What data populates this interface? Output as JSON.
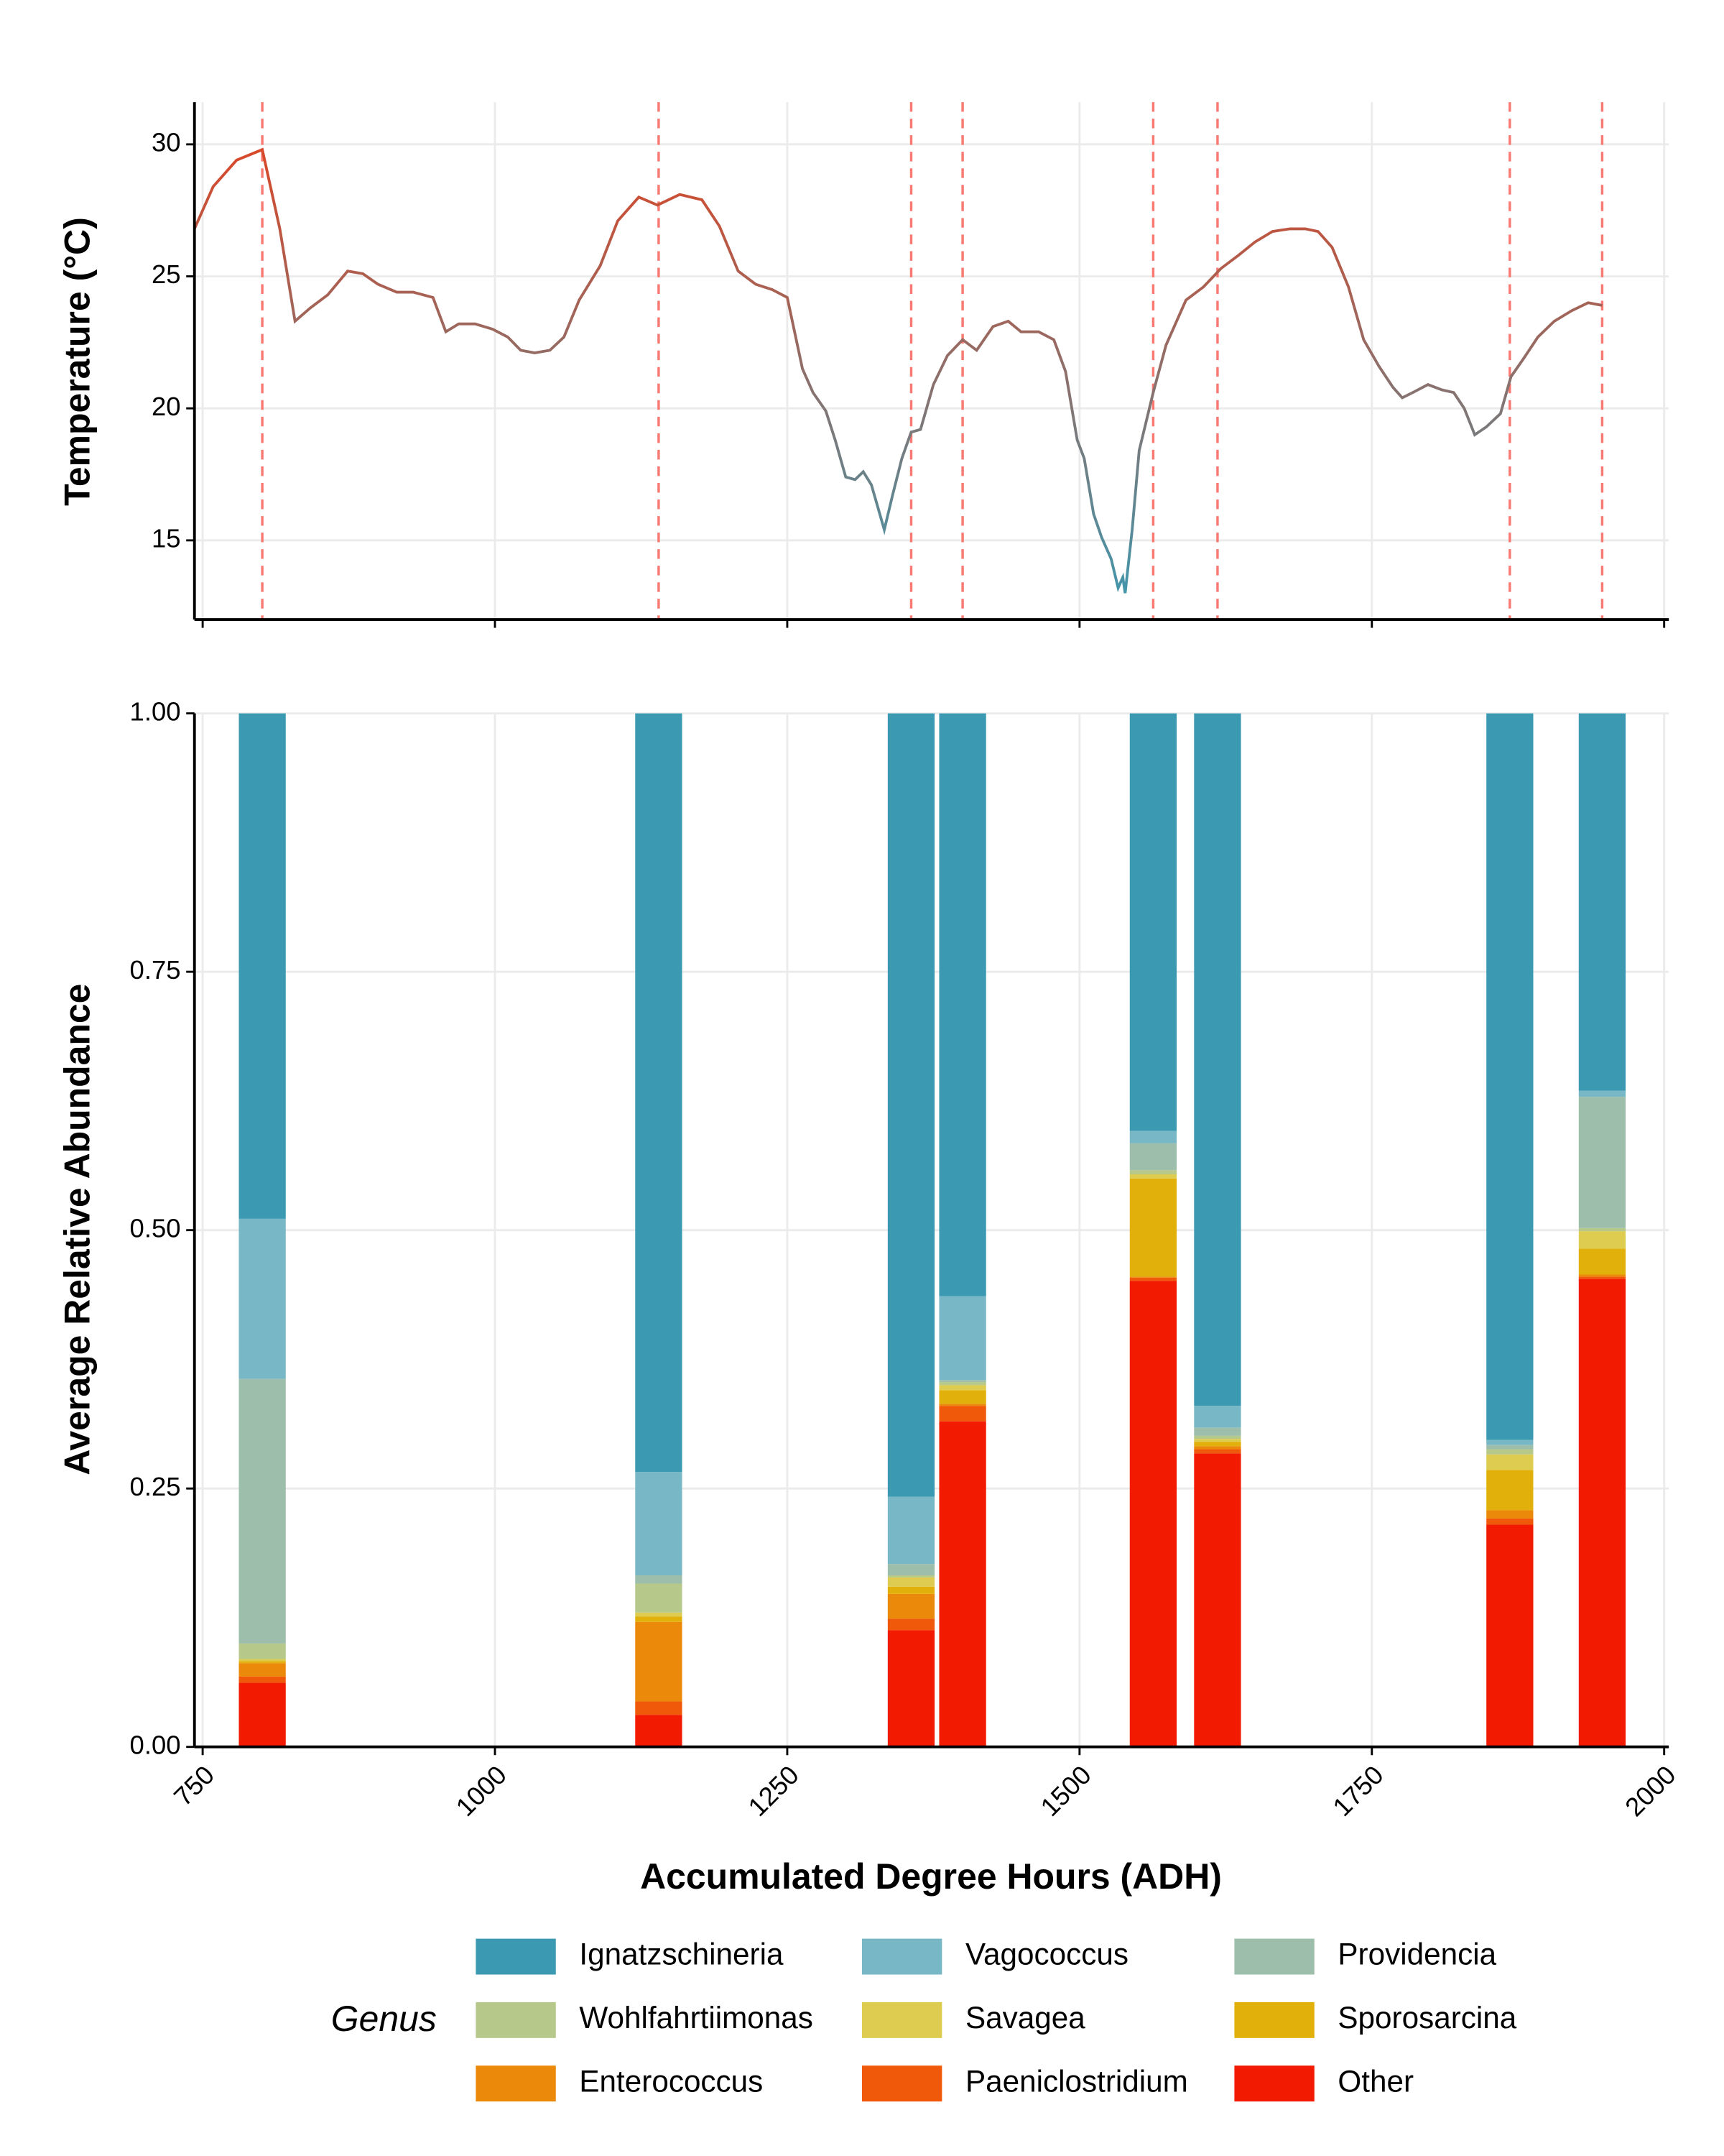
{
  "chart_data": [
    {
      "type": "line",
      "y_label": "Temperature (°C)",
      "x": [
        743,
        759,
        779,
        801,
        816,
        829,
        842,
        857,
        874,
        887,
        900,
        916,
        930,
        947,
        958,
        969,
        983,
        998,
        1011,
        1022,
        1034,
        1047,
        1059,
        1072,
        1090,
        1105,
        1123,
        1139,
        1158,
        1177,
        1192,
        1208,
        1223,
        1237,
        1250,
        1263,
        1272,
        1283,
        1291,
        1300,
        1308,
        1315,
        1322,
        1333,
        1340,
        1348,
        1356,
        1364,
        1375,
        1387,
        1400,
        1412,
        1426,
        1439,
        1450,
        1465,
        1478,
        1488,
        1498,
        1504,
        1512,
        1519,
        1527,
        1533,
        1537,
        1539,
        1545,
        1551,
        1563,
        1574,
        1591,
        1606,
        1621,
        1636,
        1650,
        1665,
        1680,
        1693,
        1704,
        1716,
        1730,
        1743,
        1756,
        1768,
        1776,
        1785,
        1798,
        1810,
        1820,
        1829,
        1838,
        1848,
        1860,
        1869,
        1880,
        1892,
        1906,
        1921,
        1935,
        1947
      ],
      "series": [
        {
          "values": [
            26.8,
            28.4,
            29.4,
            29.8,
            26.8,
            23.3,
            23.8,
            24.3,
            25.2,
            25.1,
            24.7,
            24.4,
            24.4,
            24.2,
            22.9,
            23.2,
            23.2,
            23.0,
            22.7,
            22.2,
            22.1,
            22.2,
            22.7,
            24.1,
            25.4,
            27.1,
            28.0,
            27.7,
            28.1,
            27.9,
            26.9,
            25.2,
            24.7,
            24.5,
            24.2,
            21.5,
            20.6,
            19.9,
            18.8,
            17.4,
            17.3,
            17.6,
            17.1,
            15.4,
            16.7,
            18.1,
            19.1,
            19.2,
            20.9,
            22.0,
            22.6,
            22.2,
            23.1,
            23.3,
            22.9,
            22.9,
            22.6,
            21.4,
            18.8,
            18.1,
            16.0,
            15.1,
            14.3,
            13.2,
            13.6,
            13.0,
            15.4,
            18.4,
            20.6,
            22.4,
            24.1,
            24.6,
            25.3,
            25.8,
            26.3,
            26.7,
            26.8,
            26.8,
            26.7,
            26.1,
            24.6,
            22.6,
            21.6,
            20.8,
            20.4,
            20.6,
            20.9,
            20.7,
            20.6,
            20.0,
            19.0,
            19.3,
            19.8,
            21.2,
            21.9,
            22.7,
            23.3,
            23.7,
            24.0,
            23.9
          ]
        }
      ],
      "line_color_low": "#3b9ab2",
      "line_color_high": "#e8401c",
      "vlines": [
        801,
        1140,
        1356,
        1400,
        1563,
        1618,
        1868,
        1947
      ],
      "vline_color": "#f87a72",
      "xlim": [
        743,
        2004
      ],
      "ylim": [
        12,
        31.6
      ],
      "xticks": [
        750,
        1000,
        1250,
        1500,
        1750,
        2000
      ],
      "x_tick_labels": false,
      "yticks": [
        15,
        20,
        25,
        30
      ],
      "grid": true
    },
    {
      "type": "stacked_bar",
      "x_label": "Accumulated Degree Hours (ADH)",
      "y_label": "Average Relative Abundance",
      "legend_title": "Genus",
      "x": [
        801,
        1140,
        1356,
        1400,
        1563,
        1618,
        1868,
        1947
      ],
      "series": [
        {
          "name": "Ignatzschineria",
          "color": "#3b9ab2",
          "values": [
            0.489,
            0.734,
            0.758,
            0.564,
            0.404,
            0.67,
            0.703,
            0.365
          ]
        },
        {
          "name": "Vagococcus",
          "color": "#78b7c5",
          "values": [
            0.155,
            0.1,
            0.065,
            0.081,
            0.012,
            0.021,
            0.005,
            0.006
          ]
        },
        {
          "name": "Providencia",
          "color": "#9cbeaa",
          "values": [
            0.256,
            0.008,
            0.011,
            0.002,
            0.026,
            0.008,
            0.004,
            0.127
          ]
        },
        {
          "name": "Wohlfahrtiimonas",
          "color": "#b6c98a",
          "values": [
            0.015,
            0.028,
            0.002,
            0.003,
            0.004,
            0.003,
            0.005,
            0.003
          ]
        },
        {
          "name": "Savagea",
          "color": "#ddcc50",
          "values": [
            0.002,
            0.004,
            0.009,
            0.005,
            0.004,
            0.003,
            0.015,
            0.017
          ]
        },
        {
          "name": "Sporosarcina",
          "color": "#e2b00a",
          "values": [
            0.002,
            0.005,
            0.007,
            0.013,
            0.095,
            0.004,
            0.039,
            0.025
          ]
        },
        {
          "name": "Enterococcus",
          "color": "#eb8a0a",
          "values": [
            0.013,
            0.077,
            0.024,
            0.002,
            0.001,
            0.003,
            0.008,
            0.002
          ]
        },
        {
          "name": "Paeniclostridium",
          "color": "#f0590a",
          "values": [
            0.006,
            0.013,
            0.011,
            0.015,
            0.003,
            0.004,
            0.006,
            0.002
          ]
        },
        {
          "name": "Other",
          "color": "#f21a00",
          "values": [
            0.062,
            0.031,
            0.113,
            0.315,
            0.451,
            0.284,
            0.215,
            0.453
          ]
        }
      ],
      "stack_from_bottom": [
        8,
        7,
        6,
        5,
        4,
        3,
        2,
        1,
        0
      ],
      "xlim": [
        743,
        2004
      ],
      "ylim": [
        0,
        1
      ],
      "xticks": [
        750,
        1000,
        1250,
        1500,
        1750,
        2000
      ],
      "yticks": [
        {
          "value": 0,
          "label": "0.00"
        },
        {
          "value": 0.25,
          "label": "0.25"
        },
        {
          "value": 0.5,
          "label": "0.50"
        },
        {
          "value": 0.75,
          "label": "0.75"
        },
        {
          "value": 1,
          "label": "1.00"
        }
      ],
      "grid": true
    }
  ]
}
